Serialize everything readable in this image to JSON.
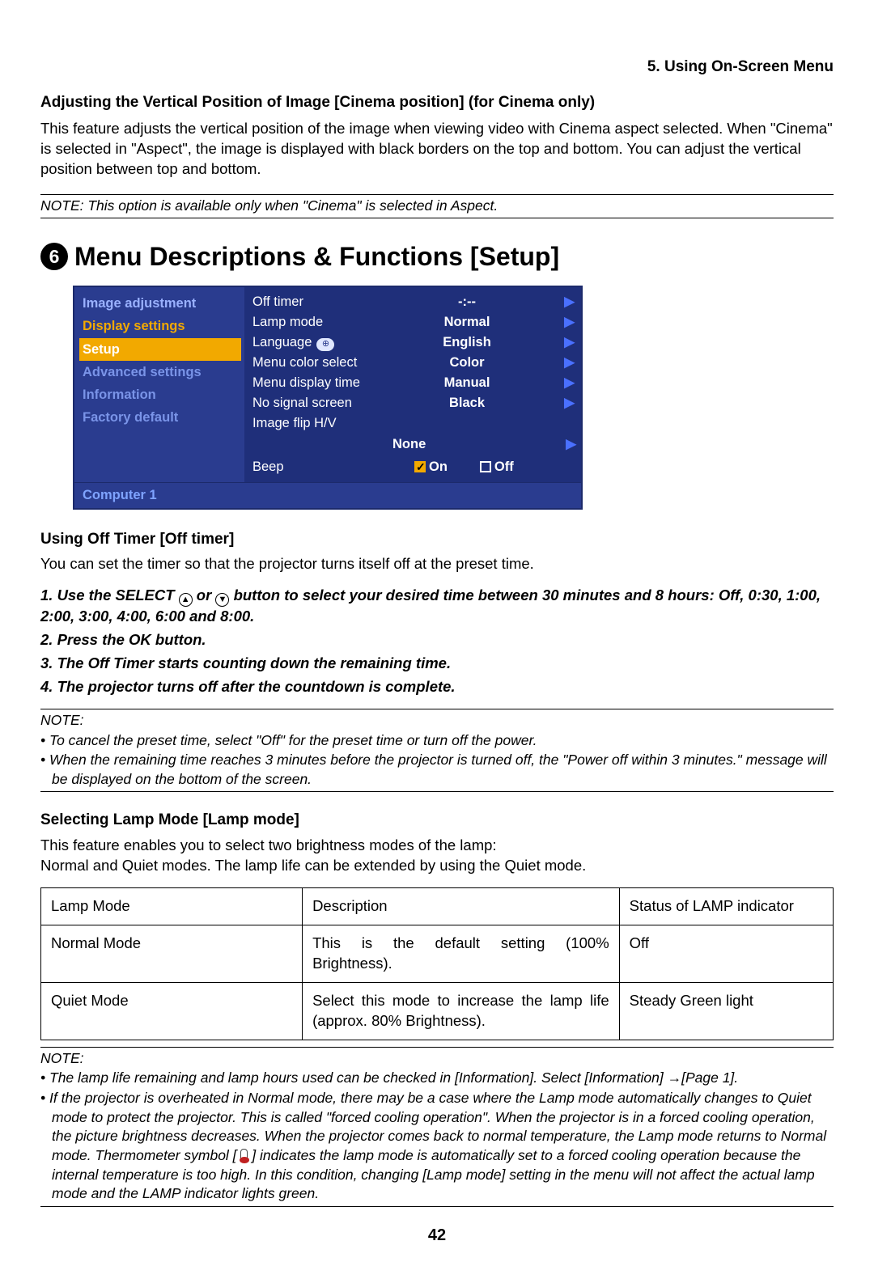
{
  "chapter": "5. Using On-Screen Menu",
  "sec1": {
    "title": "Adjusting the Vertical Position of Image [Cinema position] (for Cinema only)",
    "body": "This feature adjusts the vertical position of the image when viewing video with Cinema aspect selected. When \"Cinema\" is selected in \"Aspect\", the image is displayed with black borders on the top and bottom. You can adjust the vertical position between top and bottom.",
    "note": "NOTE: This option is available only when \"Cinema\" is selected in Aspect."
  },
  "heading6": {
    "num": "6",
    "text": "Menu Descriptions & Functions [Setup]"
  },
  "osd": {
    "left": [
      "Image adjustment",
      "Display settings",
      "Setup",
      "Advanced settings",
      "Information",
      "Factory default"
    ],
    "rows": [
      {
        "lbl": "Off timer",
        "val": "-:--",
        "arrow": true
      },
      {
        "lbl": "Lamp mode",
        "val": "Normal",
        "arrow": true
      },
      {
        "lbl": "Language",
        "val": "English",
        "arrow": true,
        "icon": true
      },
      {
        "lbl": "Menu color select",
        "val": "Color",
        "arrow": true
      },
      {
        "lbl": "Menu display time",
        "val": "Manual",
        "arrow": true
      },
      {
        "lbl": "No signal screen",
        "val": "Black",
        "arrow": true
      },
      {
        "lbl": "Image flip H/V",
        "val": "",
        "arrow": false
      }
    ],
    "flip_center": "None",
    "beep": {
      "lbl": "Beep",
      "on": "On",
      "off": "Off"
    },
    "footer": "Computer 1"
  },
  "off_timer": {
    "title": "Using Off Timer [Off timer]",
    "intro": "You can set the timer so that the projector turns itself off at the preset time.",
    "steps": [
      {
        "pre": "1.  Use the SELECT ",
        "mid": " or ",
        "post": " button to select your desired time between 30 minutes and 8 hours: Off, 0:30, 1:00, 2:00, 3:00, 4:00, 6:00 and 8:00."
      },
      {
        "text": "2.  Press the OK button."
      },
      {
        "text": "3.  The Off Timer starts counting down the remaining time."
      },
      {
        "text": "4.  The projector turns off after the countdown is complete."
      }
    ],
    "note_label": "NOTE:",
    "notes": [
      "To cancel the preset time, select \"Off\" for the preset time or turn off the power.",
      "When the remaining time reaches 3 minutes before the projector is turned off, the \"Power off within 3 minutes.\" message will be displayed on the bottom of the screen."
    ]
  },
  "lamp": {
    "title": "Selecting Lamp Mode [Lamp mode]",
    "intro": "This feature enables you to select two brightness modes of the lamp:\nNormal and Quiet modes. The lamp life can be extended by using the Quiet mode.",
    "table": {
      "headers": [
        "Lamp Mode",
        "Description",
        "Status of LAMP indicator"
      ],
      "rows": [
        [
          "Normal Mode",
          "This is the default setting (100% Brightness).",
          "Off"
        ],
        [
          "Quiet Mode",
          "Select this mode to increase the lamp life (approx. 80% Brightness).",
          "Steady Green light"
        ]
      ]
    },
    "note_label": "NOTE:",
    "notes": [
      "The lamp life remaining and lamp hours used can be checked in [Information]. Select [Information] →[Page 1].",
      "If the projector is overheated in Normal mode, there may be a case where the Lamp mode automatically changes to Quiet mode to protect the projector. This is called \"forced cooling operation\". When the projector is in a forced cooling operation, the picture brightness decreases. When the projector comes back to normal temperature, the Lamp mode returns to Normal mode. Thermometer symbol [    ] indicates the lamp mode is automatically set to a forced cooling operation because the internal temperature is too high. In this condition, changing [Lamp mode] setting in the menu will not affect the actual lamp mode and the LAMP indicator lights green."
    ]
  },
  "page_num": "42"
}
